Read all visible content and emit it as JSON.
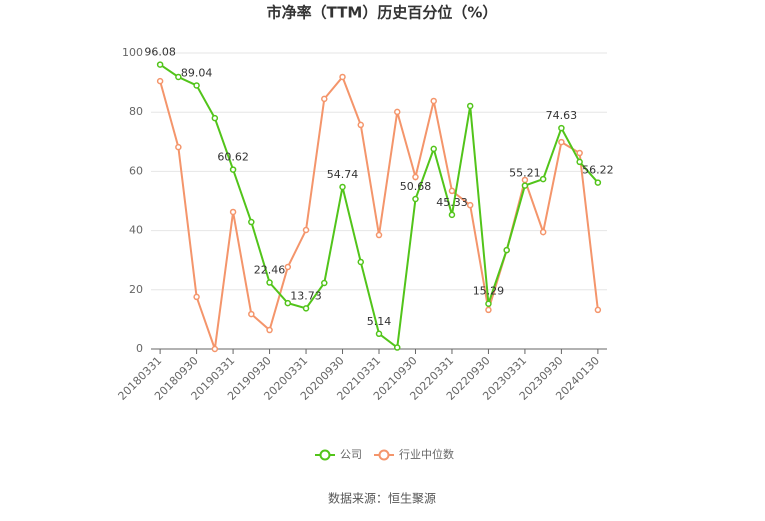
{
  "chart_data": {
    "type": "line",
    "title": "市净率（TTM）历史百分位（%）",
    "source": "数据来源：恒生聚源",
    "categories": [
      "20180331",
      null,
      "20180930",
      null,
      "20190331",
      null,
      "20190930",
      null,
      "20200331",
      null,
      "20200930",
      null,
      "20210331",
      null,
      "20210930",
      null,
      "20220331",
      null,
      "20220930",
      null,
      "20230331",
      null,
      "20230930",
      null,
      "20240130"
    ],
    "series": [
      {
        "name": "公司",
        "color": "#52c41a",
        "values": [
          96.08,
          91.9,
          89.04,
          78,
          60.62,
          42.9,
          22.46,
          15.5,
          13.73,
          22.3,
          54.74,
          29.4,
          5.14,
          0.5,
          50.68,
          67.6,
          45.33,
          82.1,
          15.29,
          33.4,
          55.21,
          57.4,
          74.63,
          63.2,
          56.22
        ],
        "value_labels": [
          "96.08",
          null,
          "89.04",
          null,
          "60.62",
          null,
          "22.46",
          null,
          "13.73",
          null,
          "54.74",
          null,
          "5.14",
          null,
          "50.68",
          null,
          "45.33",
          null,
          "15.29",
          null,
          "55.21",
          null,
          "74.63",
          null,
          "56.22"
        ]
      },
      {
        "name": "行业中位数",
        "color": "#f4956b",
        "values": [
          90.5,
          68.2,
          17.6,
          0,
          46.3,
          11.8,
          6.4,
          27.7,
          40.2,
          84.5,
          91.9,
          75.7,
          38.5,
          80.1,
          58.1,
          83.8,
          53.4,
          48.6,
          13.2,
          33.4,
          57.1,
          39.5,
          69.9,
          66.2,
          13.2
        ]
      }
    ],
    "ylim": [
      0,
      100
    ],
    "yticks": [
      0,
      20,
      40,
      60,
      80,
      100
    ],
    "grid": true,
    "legend": "bottom"
  }
}
